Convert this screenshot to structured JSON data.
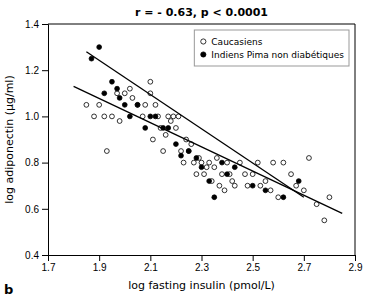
{
  "chart_data": {
    "type": "scatter",
    "title": "r = - 0.63, p < 0.0001",
    "xlabel": "log fasting insulin (pmol/L)",
    "ylabel": "log adiponectin (µg/ml)",
    "annotations": [
      "b"
    ],
    "xlim": [
      1.7,
      2.9
    ],
    "ylim": [
      0.4,
      1.4
    ],
    "xticks": [
      1.7,
      1.9,
      2.1,
      2.3,
      2.5,
      2.7,
      2.9
    ],
    "yticks": [
      0.4,
      0.6,
      0.8,
      {
        "value": 1.0,
        "label": "1.0"
      },
      1.2,
      1.4
    ],
    "grid": false,
    "legend": "upper right",
    "series": [
      {
        "name": "Caucasiens",
        "type": "scatter",
        "marker": "open",
        "color": "black",
        "x": [
          1.85,
          1.88,
          1.9,
          1.92,
          1.93,
          1.95,
          1.97,
          1.98,
          2.0,
          2.02,
          2.03,
          2.05,
          2.07,
          2.08,
          2.1,
          2.1,
          2.11,
          2.12,
          2.13,
          2.14,
          2.15,
          2.16,
          2.17,
          2.18,
          2.19,
          2.2,
          2.21,
          2.22,
          2.23,
          2.24,
          2.25,
          2.26,
          2.27,
          2.28,
          2.29,
          2.3,
          2.31,
          2.32,
          2.33,
          2.34,
          2.35,
          2.36,
          2.37,
          2.38,
          2.39,
          2.4,
          2.41,
          2.42,
          2.43,
          2.45,
          2.47,
          2.48,
          2.5,
          2.52,
          2.53,
          2.55,
          2.57,
          2.58,
          2.6,
          2.62,
          2.65,
          2.67,
          2.7,
          2.72,
          2.75,
          2.78,
          2.8
        ],
        "values": [
          1.05,
          1.0,
          1.05,
          1.0,
          0.85,
          1.0,
          1.1,
          0.98,
          1.1,
          1.12,
          1.08,
          1.05,
          1.0,
          1.05,
          1.1,
          1.15,
          0.9,
          1.05,
          1.0,
          0.95,
          0.85,
          0.92,
          1.0,
          0.98,
          1.0,
          0.95,
          1.0,
          0.85,
          0.8,
          0.9,
          0.85,
          0.88,
          0.8,
          0.75,
          0.82,
          0.8,
          0.75,
          0.78,
          0.8,
          0.72,
          0.78,
          0.82,
          0.7,
          0.75,
          0.68,
          0.8,
          0.75,
          0.72,
          0.7,
          0.8,
          0.75,
          0.7,
          0.75,
          0.8,
          0.7,
          0.72,
          0.68,
          0.8,
          0.65,
          0.8,
          0.75,
          0.7,
          0.68,
          0.82,
          0.62,
          0.55,
          0.65
        ]
      },
      {
        "name": "Indiens Pima non diabétiques",
        "type": "scatter",
        "marker": "filled",
        "color": "black",
        "x": [
          1.87,
          1.9,
          1.92,
          1.95,
          1.97,
          1.98,
          2.0,
          2.02,
          2.05,
          2.08,
          2.1,
          2.12,
          2.15,
          2.17,
          2.2,
          2.22,
          2.25,
          2.28,
          2.3,
          2.33,
          2.35,
          2.38,
          2.4,
          2.43,
          2.5,
          2.55,
          2.62,
          2.68
        ],
        "values": [
          1.25,
          1.3,
          1.1,
          1.15,
          1.12,
          1.08,
          1.05,
          1.0,
          1.05,
          0.95,
          1.0,
          1.0,
          0.95,
          0.95,
          0.88,
          0.83,
          0.85,
          0.82,
          0.78,
          0.72,
          0.65,
          0.8,
          0.75,
          0.78,
          0.7,
          0.68,
          0.65,
          0.72
        ]
      },
      {
        "type": "line",
        "color": "black",
        "line_style": "solid",
        "x": [
          1.8,
          2.85
        ],
        "values": [
          1.13,
          0.58
        ]
      },
      {
        "type": "line",
        "color": "black",
        "line_style": "solid",
        "x": [
          1.85,
          2.7
        ],
        "values": [
          1.28,
          0.65
        ]
      }
    ]
  }
}
